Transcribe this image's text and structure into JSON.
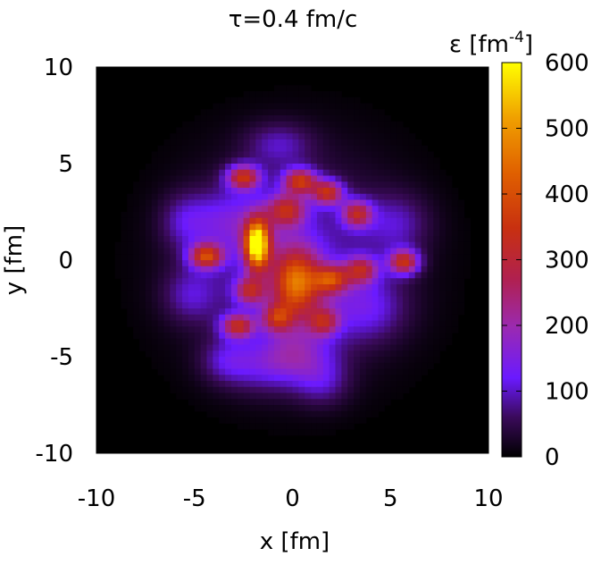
{
  "chart_data": {
    "type": "heatmap",
    "title": "τ=0.4 fm/c",
    "xlabel": "x [fm]",
    "ylabel": "y [fm]",
    "colorbar_label": "ε [fm",
    "colorbar_label_exponent": "-4",
    "colorbar_label_close": "]",
    "xlim": [
      -10,
      10
    ],
    "ylim": [
      -10,
      10
    ],
    "zlim": [
      0,
      600
    ],
    "x_ticks": [
      "-10",
      "-5",
      "0",
      "5",
      "10"
    ],
    "y_ticks": [
      "10",
      "5",
      "0",
      "-5",
      "-10"
    ],
    "colorbar_ticks": [
      "600",
      "500",
      "400",
      "300",
      "200",
      "100",
      "0"
    ],
    "colormap": [
      "#000000",
      "#3a0a5a",
      "#6a1aff",
      "#9b2ab0",
      "#b02050",
      "#c83010",
      "#e06000",
      "#f0a000",
      "#ffff00"
    ],
    "background": "#000000",
    "features": [
      {
        "x": -1.8,
        "y": 0.8,
        "sx": 0.45,
        "sy": 0.9,
        "z": 540
      },
      {
        "x": 0.2,
        "y": -1.2,
        "sx": 0.9,
        "sy": 1.3,
        "z": 360
      },
      {
        "x": -4.4,
        "y": 0.2,
        "sx": 0.6,
        "sy": 0.45,
        "z": 330
      },
      {
        "x": -2.5,
        "y": 4.3,
        "sx": 0.6,
        "sy": 0.45,
        "z": 320
      },
      {
        "x": 0.4,
        "y": 4.1,
        "sx": 0.6,
        "sy": 0.45,
        "z": 320
      },
      {
        "x": 5.7,
        "y": -0.1,
        "sx": 0.55,
        "sy": 0.45,
        "z": 320
      },
      {
        "x": 1.8,
        "y": 3.5,
        "sx": 0.55,
        "sy": 0.45,
        "z": 300
      },
      {
        "x": -2.8,
        "y": -3.4,
        "sx": 0.6,
        "sy": 0.45,
        "z": 290
      },
      {
        "x": 3.3,
        "y": 2.4,
        "sx": 0.55,
        "sy": 0.5,
        "z": 270
      },
      {
        "x": 2.0,
        "y": -1.0,
        "sx": 0.6,
        "sy": 0.5,
        "z": 270
      },
      {
        "x": -0.3,
        "y": 2.6,
        "sx": 0.7,
        "sy": 0.6,
        "z": 260
      },
      {
        "x": 3.5,
        "y": -0.5,
        "sx": 0.6,
        "sy": 0.5,
        "z": 250
      },
      {
        "x": -2.2,
        "y": -1.6,
        "sx": 0.55,
        "sy": 0.5,
        "z": 240
      },
      {
        "x": -0.8,
        "y": -3.0,
        "sx": 0.55,
        "sy": 0.5,
        "z": 230
      },
      {
        "x": 1.6,
        "y": -3.2,
        "sx": 0.55,
        "sy": 0.5,
        "z": 210
      },
      {
        "x": 0.0,
        "y": 0.0,
        "sx": 3.6,
        "sy": 3.6,
        "z": 130
      },
      {
        "x": -3.2,
        "y": 2.0,
        "sx": 1.4,
        "sy": 1.2,
        "z": 110
      },
      {
        "x": 3.8,
        "y": -2.5,
        "sx": 1.4,
        "sy": 1.2,
        "z": 110
      },
      {
        "x": -1.5,
        "y": -5.5,
        "sx": 1.5,
        "sy": 1.0,
        "z": 100
      },
      {
        "x": 1.5,
        "y": -6.3,
        "sx": 1.0,
        "sy": 0.9,
        "z": 95
      },
      {
        "x": -5.2,
        "y": -1.8,
        "sx": 1.0,
        "sy": 1.0,
        "z": 95
      },
      {
        "x": 5.3,
        "y": 1.9,
        "sx": 1.2,
        "sy": 1.1,
        "z": 95
      },
      {
        "x": -0.7,
        "y": 6.0,
        "sx": 1.2,
        "sy": 0.8,
        "z": 95
      },
      {
        "x": -5.5,
        "y": 2.0,
        "sx": 0.9,
        "sy": 1.0,
        "z": 90
      },
      {
        "x": 0.3,
        "y": -4.8,
        "sx": 1.3,
        "sy": 1.0,
        "z": 120
      },
      {
        "x": -3.4,
        "y": -5.2,
        "sx": 0.9,
        "sy": 0.8,
        "z": 85
      }
    ]
  }
}
